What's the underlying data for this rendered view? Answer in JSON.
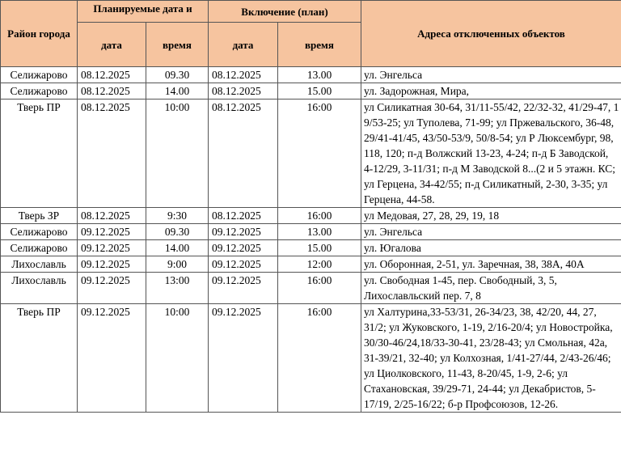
{
  "table": {
    "header": {
      "district": "Район города",
      "planned": "Планируемые дата и",
      "restore": "Включение (план)",
      "addresses": "Адреса отключенных объектов",
      "date1": "дата",
      "time1": "время",
      "date2": "дата",
      "time2": "время"
    },
    "rows": [
      [
        "Селижарово",
        "08.12.2025",
        "09.30",
        "08.12.2025",
        "13.00",
        "ул. Энгельса"
      ],
      [
        "Селижарово",
        "08.12.2025",
        "14.00",
        "08.12.2025",
        "15.00",
        "ул. Задорожная, Мира,"
      ],
      [
        "Тверь ПР",
        "08.12.2025",
        "10:00",
        "08.12.2025",
        "16:00",
        "ул Силикатная 30-64, 31/11-55/42, 22/32-32, 41/29-47, 1 9/53-25; ул Туполева, 71-99; ул Пржевальского, 36-48, 29/41-41/45, 43/50-53/9, 50/8-54; ул Р Люксембург, 98, 118, 120; п-д Волжский 13-23, 4-24; п-д Б Заводской, 4-12/29, 3-11/31; п-д М Заводской 8...(2 и 5 этажн. КС; ул Герцена, 34-42/55; п-д Силикатный, 2-30, 3-35; ул Герцена, 44-58."
      ],
      [
        "Тверь ЗР",
        "08.12.2025",
        "9:30",
        "08.12.2025",
        "16:00",
        "ул Медовая, 27, 28, 29, 19, 18"
      ],
      [
        "Селижарово",
        "09.12.2025",
        "09.30",
        "09.12.2025",
        "13.00",
        "ул. Энгельса"
      ],
      [
        "Селижарово",
        "09.12.2025",
        "14.00",
        "09.12.2025",
        "15.00",
        "ул. Югалова"
      ],
      [
        "Лихославль",
        "09.12.2025",
        "9:00",
        "09.12.2025",
        "12:00",
        "ул. Оборонная, 2-51, ул. Заречная, 38, 38А, 40А"
      ],
      [
        "Лихославль",
        "09.12.2025",
        "13:00",
        "09.12.2025",
        "16:00",
        "ул. Свободная 1-45, пер. Свободный, 3, 5, Лихославльский пер. 7, 8"
      ],
      [
        "Тверь ПР",
        "09.12.2025",
        "10:00",
        "09.12.2025",
        "16:00",
        "ул Халтурина,33-53/31, 26-34/23, 38, 42/20, 44, 27, 31/2; ул Жуковского, 1-19, 2/16-20/4; ул Новостройка, 30/30-46/24,18/33-30-41, 23/28-43; ул Смольная, 42а, 31-39/21, 32-40; ул Колхозная, 1/41-27/44, 2/43-26/46; ул Циолковского, 11-43, 8-20/45,  1-9, 2-6; ул Стахановская, 39/29-71, 24-44; ул Декабристов, 5-17/19, 2/25-16/22; б-р Профсоюзов, 12-26."
      ]
    ]
  }
}
